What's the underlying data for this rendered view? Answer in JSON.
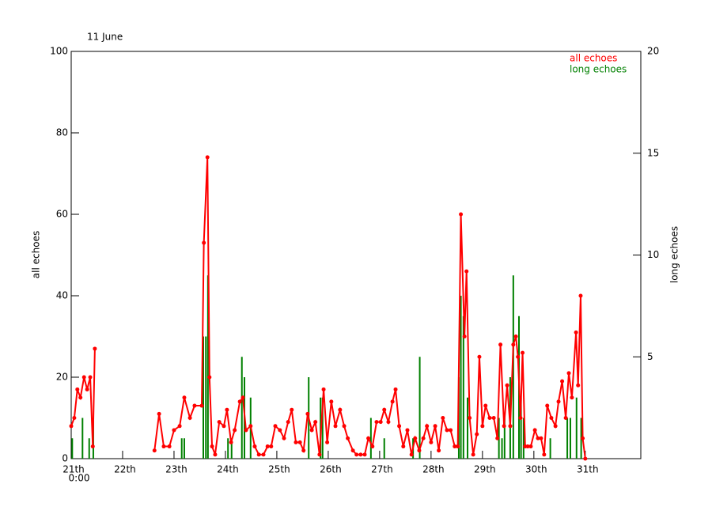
{
  "chart_data": {
    "type": "line",
    "title": "11 June",
    "y_label": "all echoes",
    "y2_label": "long echoes",
    "x_sublabel": "0:00",
    "legend": "upper right",
    "xlim": [
      0,
      11.08
    ],
    "xticks": [
      {
        "value": 0,
        "label": "21th"
      },
      {
        "value": 1,
        "label": "22th"
      },
      {
        "value": 2,
        "label": "23th"
      },
      {
        "value": 3,
        "label": "24th"
      },
      {
        "value": 4,
        "label": "25th"
      },
      {
        "value": 5,
        "label": "26th"
      },
      {
        "value": 6,
        "label": "27th"
      },
      {
        "value": 7,
        "label": "28th"
      },
      {
        "value": 8,
        "label": "29th"
      },
      {
        "value": 9,
        "label": "30th"
      },
      {
        "value": 10,
        "label": "31th"
      }
    ],
    "ylim": [
      0,
      100
    ],
    "yticks": [
      0,
      20,
      40,
      60,
      80,
      100
    ],
    "y2lim": [
      0,
      20
    ],
    "y2ticks": [
      5,
      10,
      15,
      20
    ],
    "series": [
      {
        "name": "all echoes",
        "color": "#ff0000",
        "type": "line",
        "x": [
          0,
          0.06,
          0.12,
          0.18,
          0.25,
          0.31,
          0.37,
          0.42,
          0.46,
          1.0,
          1.62,
          1.71,
          1.8,
          1.91,
          2.0,
          2.11,
          2.2,
          2.31,
          2.4,
          2.54,
          2.58,
          2.65,
          2.69,
          2.74,
          2.8,
          2.88,
          2.97,
          3.03,
          3.11,
          3.18,
          3.28,
          3.34,
          3.4,
          3.49,
          3.57,
          3.65,
          3.74,
          3.82,
          3.89,
          3.97,
          4.06,
          4.14,
          4.22,
          4.29,
          4.37,
          4.45,
          4.52,
          4.6,
          4.68,
          4.75,
          4.83,
          4.91,
          4.98,
          5.06,
          5.14,
          5.23,
          5.31,
          5.38,
          5.48,
          5.55,
          5.63,
          5.71,
          5.78,
          5.86,
          5.94,
          6.02,
          6.09,
          6.17,
          6.25,
          6.31,
          6.38,
          6.46,
          6.54,
          6.62,
          6.69,
          6.77,
          6.85,
          6.92,
          7.0,
          7.08,
          7.15,
          7.23,
          7.31,
          7.38,
          7.46,
          7.52,
          7.58,
          7.65,
          7.69,
          7.75,
          7.82,
          7.89,
          7.94,
          8.0,
          8.06,
          8.14,
          8.22,
          8.29,
          8.35,
          8.42,
          8.48,
          8.54,
          8.6,
          8.65,
          8.69,
          8.74,
          8.78,
          8.83,
          8.88,
          8.94,
          9.02,
          9.08,
          9.14,
          9.2,
          9.26,
          9.34,
          9.42,
          9.48,
          9.55,
          9.62,
          9.68,
          9.74,
          9.82,
          9.86,
          9.91,
          9.95,
          10.0
        ],
        "values": [
          8,
          10,
          17,
          15,
          20,
          17,
          20,
          3,
          27,
          null,
          2,
          11,
          3,
          3,
          7,
          8,
          15,
          10,
          13,
          13,
          53,
          74,
          20,
          3,
          1,
          9,
          8,
          12,
          4,
          7,
          14,
          15,
          7,
          8,
          3,
          1,
          1,
          3,
          3,
          8,
          7,
          5,
          9,
          12,
          4,
          4,
          2,
          11,
          7,
          9,
          1,
          17,
          4,
          14,
          8,
          12,
          8,
          5,
          2,
          1,
          1,
          1,
          5,
          3,
          9,
          9,
          12,
          9,
          14,
          17,
          8,
          3,
          7,
          1,
          5,
          2,
          5,
          8,
          4,
          8,
          2,
          10,
          7,
          7,
          3,
          3,
          60,
          30,
          46,
          10,
          1,
          6,
          25,
          8,
          13,
          10,
          10,
          5,
          28,
          8,
          18,
          8,
          28,
          30,
          25,
          10,
          26,
          3,
          3,
          3,
          7,
          5,
          5,
          1,
          13,
          10,
          8,
          14,
          19,
          10,
          21,
          15,
          31,
          18,
          40,
          5,
          0
        ]
      },
      {
        "name": "long echoes",
        "color": "#008000",
        "type": "bar",
        "axis": "y2",
        "x": [
          0.02,
          0.22,
          0.35,
          0.43,
          2.15,
          2.2,
          2.57,
          2.62,
          2.66,
          3.05,
          3.12,
          3.32,
          3.37,
          3.49,
          4.62,
          4.85,
          4.89,
          5.83,
          6.09,
          6.65,
          6.78,
          7.54,
          7.58,
          7.63,
          7.71,
          8.32,
          8.38,
          8.43,
          8.54,
          8.6,
          8.71,
          8.75,
          8.8,
          9.32,
          9.65,
          9.71,
          9.83,
          9.92
        ],
        "values": [
          1,
          2,
          1,
          2,
          1,
          1,
          6,
          6,
          9,
          1,
          1,
          5,
          4,
          3,
          4,
          3,
          3,
          2,
          1,
          1,
          5,
          4,
          8,
          7,
          3,
          2,
          1,
          2,
          4,
          9,
          7,
          3,
          2,
          1,
          2,
          2,
          3,
          2
        ]
      }
    ]
  }
}
